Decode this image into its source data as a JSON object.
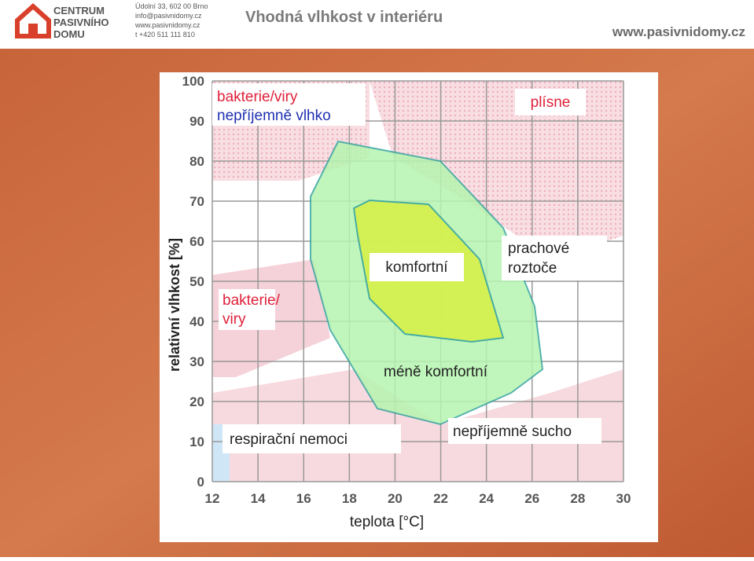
{
  "header": {
    "logo_lines": [
      "CENTRUM",
      "PASIVNÍHO",
      "DOMU"
    ],
    "contact": [
      "Údolní 33, 602 00 Brno",
      "info@pasivnidomy.cz",
      "www.pasivnidomy.cz",
      "t +420 511 111 810"
    ],
    "title": "Vhodná vlhkost v interiéru",
    "website": "www.pasivnidomy.cz"
  },
  "diagram": {
    "x_label": "teplota [°C]",
    "y_label": "relativní vlhkost [%]",
    "xlim": [
      12,
      30
    ],
    "ylim": [
      0,
      100
    ],
    "xticks": [
      12,
      14,
      16,
      18,
      20,
      22,
      24,
      26,
      28,
      30
    ],
    "yticks": [
      0,
      10,
      20,
      30,
      40,
      50,
      60,
      70,
      80,
      90,
      100
    ],
    "zones": {
      "top_left": [
        "bakterie/viry",
        "nepříjemně vlhko"
      ],
      "mold": "plísne",
      "comfort": "komfortní",
      "mites": [
        "prachové",
        "roztoče"
      ],
      "bacteria": [
        "bakterie/",
        "viry"
      ],
      "less_comfort": "méně komfortní",
      "respiratory": "respirační nemoci",
      "dry": "nepříjemně sucho"
    }
  }
}
